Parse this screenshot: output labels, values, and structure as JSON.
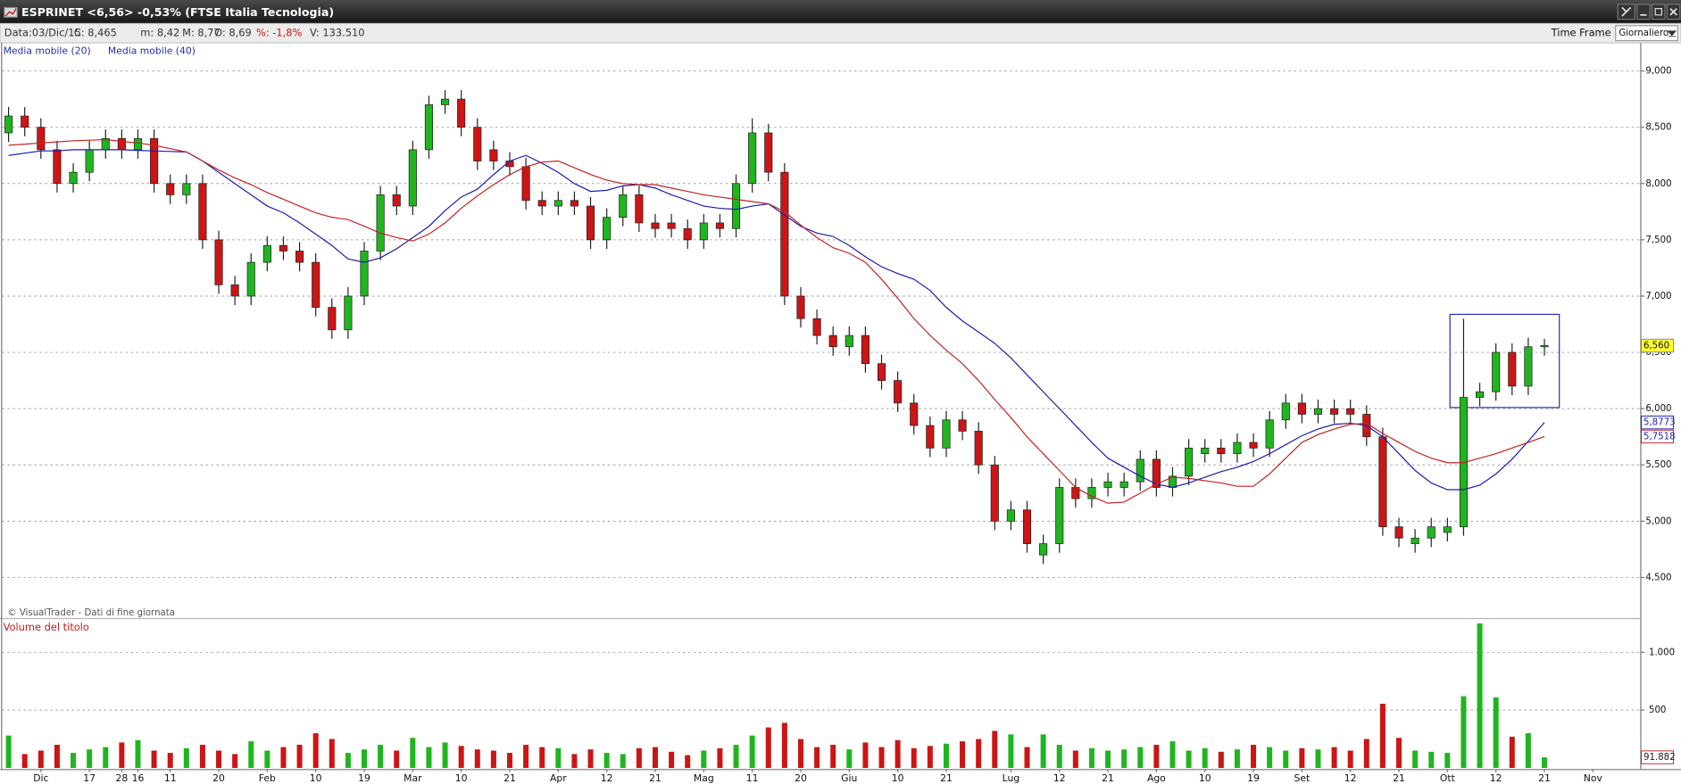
{
  "header": {
    "title": "ESPRINET <6,56> -0,53% (FTSE Italia Tecnologia)",
    "info": [
      "Data:03/Dic/15",
      "C: 8,465",
      "m: 8,42",
      "M: 8,77",
      "O: 8,69",
      "%: -1,8%",
      "V: 133.510"
    ],
    "time_frame_label": "Time Frame",
    "time_frame": "Giornaliero"
  },
  "chart_data": {
    "type": "candlestick",
    "source": "© VisualTrader - Dati di fine giornata",
    "up_color": "#1fb51f",
    "down_color": "#cc1515",
    "grid": true,
    "categories": [
      null,
      null,
      "Dic",
      null,
      null,
      "17",
      null,
      "28",
      "16",
      null,
      "11",
      null,
      null,
      "20",
      null,
      null,
      "Feb",
      null,
      null,
      "10",
      null,
      null,
      "19",
      null,
      null,
      "Mar",
      null,
      null,
      "10",
      null,
      null,
      "21",
      null,
      null,
      "Apr",
      null,
      null,
      "12",
      null,
      null,
      "21",
      null,
      null,
      "Mag",
      null,
      null,
      "11",
      null,
      null,
      "20",
      null,
      null,
      "Giu",
      null,
      null,
      "10",
      null,
      null,
      "21",
      null,
      null,
      null,
      "Lug",
      null,
      null,
      "12",
      null,
      null,
      "21",
      null,
      null,
      "Ago",
      null,
      null,
      "10",
      null,
      null,
      "19",
      null,
      null,
      "Set",
      null,
      null,
      "12",
      null,
      null,
      "21",
      null,
      null,
      "Ott",
      null,
      null,
      "12",
      null,
      null,
      "21",
      null,
      null,
      "Nov"
    ],
    "open": [
      8450,
      8600,
      8500,
      8300,
      8000,
      8100,
      8300,
      8400,
      8300,
      8400,
      8000,
      7900,
      8000,
      7500,
      7100,
      7000,
      7300,
      7450,
      7400,
      7300,
      6900,
      6700,
      7000,
      7400,
      7900,
      7800,
      8300,
      8700,
      8750,
      8500,
      8300,
      8200,
      8150,
      7850,
      7800,
      7850,
      7800,
      7500,
      7700,
      7900,
      7650,
      7650,
      7600,
      7500,
      7650,
      7600,
      8000,
      8450,
      8100,
      7000,
      6800,
      6650,
      6550,
      6650,
      6400,
      6250,
      6050,
      5850,
      5650,
      5900,
      5800,
      5500,
      5000,
      5100,
      4700,
      4800,
      5300,
      5200,
      5300,
      5300,
      5350,
      5550,
      5300,
      5400,
      5600,
      5650,
      5600,
      5700,
      5650,
      5900,
      6050,
      5950,
      6000,
      6000,
      5950,
      5750,
      4950,
      4800,
      4850,
      4900,
      4950,
      6100,
      6150,
      6500,
      6200,
      6550,
      null,
      null,
      null
    ],
    "high": [
      8680,
      8680,
      8580,
      8380,
      8180,
      8380,
      8480,
      8480,
      8480,
      8480,
      8080,
      8080,
      8080,
      7580,
      7180,
      7380,
      7530,
      7530,
      7480,
      7380,
      6980,
      7080,
      7480,
      7980,
      7980,
      8380,
      8780,
      8830,
      8830,
      8580,
      8380,
      8280,
      8230,
      7930,
      7930,
      7930,
      7880,
      7780,
      7980,
      7980,
      7730,
      7730,
      7680,
      7730,
      7730,
      8080,
      8580,
      8530,
      8180,
      7080,
      6880,
      6730,
      6730,
      6730,
      6480,
      6330,
      6130,
      5930,
      5980,
      5980,
      5880,
      5580,
      5180,
      5180,
      4880,
      5380,
      5380,
      5380,
      5430,
      5430,
      5630,
      5630,
      5480,
      5730,
      5730,
      5730,
      5780,
      5780,
      5980,
      6130,
      6130,
      6080,
      6080,
      6080,
      6030,
      5830,
      5030,
      4930,
      5030,
      5030,
      6800,
      6230,
      6580,
      6580,
      6630,
      6620,
      null,
      null,
      null
    ],
    "low": [
      8370,
      8420,
      8220,
      7920,
      7920,
      8020,
      8220,
      8220,
      8220,
      7920,
      7820,
      7820,
      7420,
      7020,
      6920,
      6920,
      7220,
      7320,
      7220,
      6820,
      6620,
      6620,
      6920,
      7320,
      7720,
      7720,
      8220,
      8620,
      8420,
      8120,
      8120,
      8070,
      7770,
      7720,
      7720,
      7720,
      7420,
      7420,
      7620,
      7570,
      7520,
      7520,
      7420,
      7420,
      7520,
      7520,
      7920,
      8020,
      6920,
      6720,
      6570,
      6470,
      6470,
      6320,
      6170,
      5970,
      5770,
      5570,
      5570,
      5720,
      5420,
      4920,
      4920,
      4720,
      4620,
      4720,
      5120,
      5120,
      5220,
      5220,
      5270,
      5220,
      5220,
      5320,
      5520,
      5520,
      5520,
      5570,
      5570,
      5820,
      5870,
      5870,
      5870,
      5870,
      5670,
      4870,
      4770,
      4720,
      4770,
      4820,
      4870,
      6020,
      6070,
      6120,
      6120,
      6470,
      null,
      null,
      null
    ],
    "close": [
      8600,
      8500,
      8300,
      8000,
      8100,
      8300,
      8400,
      8300,
      8400,
      8000,
      7900,
      8000,
      7500,
      7100,
      7000,
      7300,
      7450,
      7400,
      7300,
      6900,
      6700,
      7000,
      7400,
      7900,
      7800,
      8300,
      8700,
      8750,
      8500,
      8200,
      8200,
      8150,
      7850,
      7800,
      7850,
      7800,
      7500,
      7700,
      7900,
      7650,
      7600,
      7600,
      7500,
      7650,
      7600,
      8000,
      8450,
      8100,
      7000,
      6800,
      6650,
      6550,
      6650,
      6400,
      6250,
      6050,
      5850,
      5650,
      5900,
      5800,
      5500,
      5000,
      5100,
      4800,
      4800,
      5300,
      5200,
      5300,
      5350,
      5350,
      5550,
      5300,
      5400,
      5650,
      5650,
      5600,
      5700,
      5650,
      5900,
      6050,
      5950,
      6000,
      5950,
      5950,
      5750,
      4950,
      4850,
      4850,
      4950,
      4950,
      6100,
      6150,
      6500,
      6200,
      6550,
      6560,
      null,
      null,
      null
    ],
    "value_labels": [
      null,
      null,
      null,
      null,
      null,
      null,
      null,
      null,
      null,
      null,
      null,
      null,
      null,
      null,
      null,
      null,
      null,
      null,
      null,
      null,
      null,
      null,
      null,
      null,
      null,
      null,
      null,
      null,
      null,
      null,
      null,
      null,
      null,
      null,
      null,
      null,
      null,
      null,
      null,
      null,
      null,
      null,
      null,
      null,
      null,
      null,
      null,
      null,
      null,
      null,
      null,
      null,
      null,
      null,
      null,
      null,
      null,
      null,
      null,
      null,
      null,
      null,
      null,
      null,
      null,
      null,
      null,
      null,
      null,
      null,
      null,
      null,
      null,
      null,
      null,
      null,
      null,
      null,
      null,
      null,
      null,
      null,
      null,
      null,
      null,
      null,
      null,
      null,
      null,
      null,
      null,
      null,
      null,
      null,
      null,
      "6,560",
      null,
      null,
      null
    ],
    "series": [
      {
        "name": "Media mobile (20)",
        "type": "line",
        "color": "#1c1cb0",
        "values": [
          8250,
          8270,
          8290,
          8290,
          8300,
          8300,
          8300,
          8300,
          8295,
          8290,
          8285,
          8280,
          8200,
          8100,
          8000,
          7900,
          7800,
          7740,
          7650,
          7550,
          7450,
          7330,
          7300,
          7340,
          7420,
          7520,
          7620,
          7760,
          7880,
          7950,
          8080,
          8200,
          8250,
          8180,
          8100,
          8000,
          7930,
          7940,
          7980,
          7990,
          7960,
          7900,
          7850,
          7800,
          7780,
          7770,
          7800,
          7820,
          7720,
          7620,
          7560,
          7530,
          7450,
          7350,
          7260,
          7200,
          7150,
          7050,
          6900,
          6780,
          6680,
          6580,
          6450,
          6300,
          6150,
          6000,
          5850,
          5700,
          5560,
          5480,
          5400,
          5330,
          5300,
          5340,
          5390,
          5440,
          5480,
          5530,
          5600,
          5680,
          5760,
          5820,
          5860,
          5870,
          5850,
          5750,
          5600,
          5450,
          5340,
          5280,
          5280,
          5320,
          5420,
          5550,
          5710,
          5877.3,
          null,
          null,
          null
        ],
        "value_labels": [
          null,
          null,
          null,
          null,
          null,
          null,
          null,
          null,
          null,
          null,
          null,
          null,
          null,
          null,
          null,
          null,
          null,
          null,
          null,
          null,
          null,
          null,
          null,
          null,
          null,
          null,
          null,
          null,
          null,
          null,
          null,
          null,
          null,
          null,
          null,
          null,
          null,
          null,
          null,
          null,
          null,
          null,
          null,
          null,
          null,
          null,
          null,
          null,
          null,
          null,
          null,
          null,
          null,
          null,
          null,
          null,
          null,
          null,
          null,
          null,
          null,
          null,
          null,
          null,
          null,
          null,
          null,
          null,
          null,
          null,
          null,
          null,
          null,
          null,
          null,
          null,
          null,
          null,
          null,
          null,
          null,
          null,
          null,
          null,
          null,
          null,
          null,
          null,
          null,
          null,
          null,
          null,
          null,
          null,
          null,
          "5,8773",
          null,
          null,
          null
        ]
      },
      {
        "name": "Media mobile (40)",
        "type": "line",
        "color": "#c42222",
        "values": [
          8340,
          8350,
          8360,
          8370,
          8380,
          8385,
          8390,
          8375,
          8360,
          8340,
          8310,
          8280,
          8200,
          8120,
          8050,
          7990,
          7920,
          7860,
          7800,
          7740,
          7700,
          7680,
          7620,
          7560,
          7520,
          7490,
          7550,
          7650,
          7780,
          7890,
          7990,
          8080,
          8150,
          8190,
          8200,
          8140,
          8080,
          8030,
          8000,
          7990,
          7990,
          7960,
          7930,
          7900,
          7880,
          7860,
          7840,
          7820,
          7750,
          7630,
          7520,
          7430,
          7380,
          7300,
          7150,
          6980,
          6800,
          6650,
          6520,
          6400,
          6250,
          6080,
          5920,
          5750,
          5600,
          5450,
          5300,
          5220,
          5160,
          5170,
          5250,
          5330,
          5390,
          5380,
          5360,
          5340,
          5310,
          5310,
          5420,
          5560,
          5700,
          5770,
          5820,
          5860,
          5870,
          5780,
          5700,
          5620,
          5560,
          5520,
          5520,
          5560,
          5600,
          5650,
          5700,
          5751.8,
          null,
          null,
          null
        ],
        "value_labels": [
          null,
          null,
          null,
          null,
          null,
          null,
          null,
          null,
          null,
          null,
          null,
          null,
          null,
          null,
          null,
          null,
          null,
          null,
          null,
          null,
          null,
          null,
          null,
          null,
          null,
          null,
          null,
          null,
          null,
          null,
          null,
          null,
          null,
          null,
          null,
          null,
          null,
          null,
          null,
          null,
          null,
          null,
          null,
          null,
          null,
          null,
          null,
          null,
          null,
          null,
          null,
          null,
          null,
          null,
          null,
          null,
          null,
          null,
          null,
          null,
          null,
          null,
          null,
          null,
          null,
          null,
          null,
          null,
          null,
          null,
          null,
          null,
          null,
          null,
          null,
          null,
          null,
          null,
          null,
          null,
          null,
          null,
          null,
          null,
          null,
          null,
          null,
          null,
          null,
          null,
          null,
          null,
          null,
          null,
          null,
          "5,7518",
          null,
          null,
          null
        ]
      }
    ],
    "ylim": [
      4140,
      9250
    ],
    "yticks": [
      {
        "value": 9000,
        "label": "9,000"
      },
      {
        "value": 8500,
        "label": "8,500"
      },
      {
        "value": 8000,
        "label": "8,000"
      },
      {
        "value": 7500,
        "label": "7,500"
      },
      {
        "value": 7000,
        "label": "7,000"
      },
      {
        "value": 6500,
        "label": "6,500"
      },
      {
        "value": 6000,
        "label": "6,000"
      },
      {
        "value": 5500,
        "label": "5,500"
      },
      {
        "value": 5000,
        "label": "5,000"
      },
      {
        "value": 4500,
        "label": "4,500"
      }
    ],
    "volume": {
      "type": "bar",
      "title": "Volume del titolo",
      "values": [
        280,
        120,
        150,
        200,
        130,
        160,
        180,
        220,
        240,
        150,
        130,
        170,
        200,
        150,
        120,
        230,
        150,
        180,
        200,
        300,
        250,
        130,
        160,
        200,
        150,
        260,
        180,
        220,
        190,
        160,
        150,
        130,
        200,
        180,
        170,
        120,
        160,
        130,
        120,
        170,
        180,
        140,
        110,
        150,
        170,
        200,
        280,
        350,
        390,
        250,
        180,
        200,
        160,
        220,
        180,
        240,
        170,
        190,
        210,
        230,
        250,
        320,
        290,
        180,
        290,
        200,
        150,
        170,
        150,
        160,
        180,
        200,
        230,
        150,
        170,
        140,
        160,
        200,
        180,
        150,
        170,
        160,
        180,
        150,
        250,
        555,
        260,
        150,
        140,
        130,
        620,
        1250,
        610,
        270,
        300,
        91.882,
        null,
        null,
        null
      ],
      "value_labels": [
        null,
        null,
        null,
        null,
        null,
        null,
        null,
        null,
        null,
        null,
        null,
        null,
        null,
        null,
        null,
        null,
        null,
        null,
        null,
        null,
        null,
        null,
        null,
        null,
        null,
        null,
        null,
        null,
        null,
        null,
        null,
        null,
        null,
        null,
        null,
        null,
        null,
        null,
        null,
        null,
        null,
        null,
        null,
        null,
        null,
        null,
        null,
        null,
        null,
        null,
        null,
        null,
        null,
        null,
        null,
        null,
        null,
        null,
        null,
        null,
        null,
        null,
        null,
        null,
        null,
        null,
        null,
        null,
        null,
        null,
        null,
        null,
        null,
        null,
        null,
        null,
        null,
        null,
        null,
        null,
        null,
        null,
        null,
        null,
        null,
        null,
        null,
        null,
        null,
        null,
        null,
        null,
        null,
        null,
        null,
        "91.882",
        null,
        null,
        null
      ],
      "ylim": [
        0,
        1287
      ],
      "yticks": [
        {
          "value": 1000,
          "label": "1.000"
        },
        500
      ]
    }
  }
}
